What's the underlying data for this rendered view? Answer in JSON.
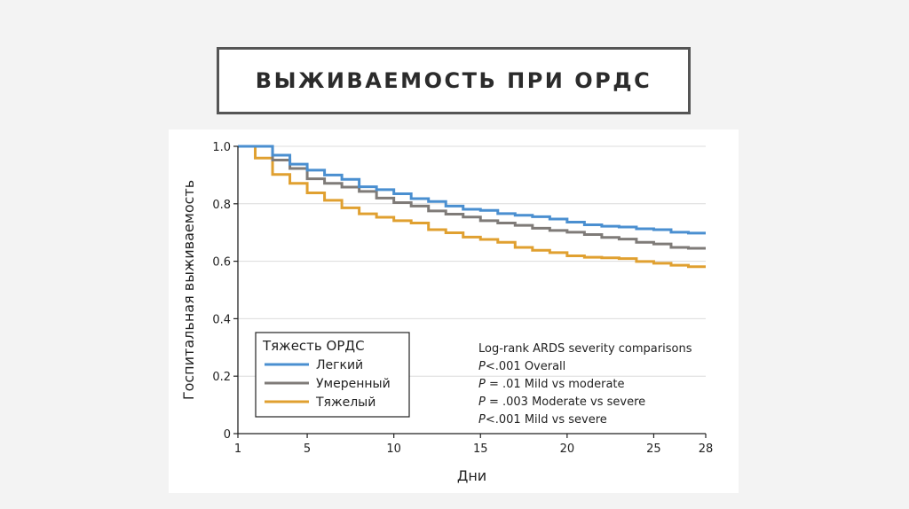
{
  "slide": {
    "title": "ВЫЖИВАЕМОСТЬ ПРИ ОРДС"
  },
  "chart_data": {
    "type": "line",
    "step": true,
    "title": "",
    "xlabel": "Дни",
    "ylabel": "Госпитальная выживаемость",
    "xlim": [
      1,
      28
    ],
    "ylim": [
      0,
      1.0
    ],
    "x_ticks": [
      1,
      5,
      10,
      15,
      20,
      25,
      28
    ],
    "x_tick_labels": [
      "1",
      "5",
      "10",
      "15",
      "20",
      "25",
      "28"
    ],
    "y_ticks": [
      0,
      0.2,
      0.4,
      0.6,
      0.8,
      1.0
    ],
    "y_tick_labels": [
      "0",
      "0.2",
      "0.4",
      "0.6",
      "0.8",
      "1.0"
    ],
    "grid": "horizontal",
    "x": [
      1,
      2,
      3,
      4,
      5,
      6,
      7,
      8,
      9,
      10,
      11,
      12,
      13,
      14,
      15,
      16,
      17,
      18,
      19,
      20,
      21,
      22,
      23,
      24,
      25,
      26,
      27,
      28
    ],
    "legend": {
      "title": "Тяжесть ОРДС",
      "placement": "bottom-left"
    },
    "series": [
      {
        "name": "Легкий",
        "color": "#4a8fd0",
        "values": [
          1.0,
          1.0,
          0.969,
          0.938,
          0.917,
          0.9,
          0.885,
          0.859,
          0.849,
          0.835,
          0.818,
          0.808,
          0.792,
          0.781,
          0.777,
          0.766,
          0.76,
          0.755,
          0.747,
          0.736,
          0.727,
          0.722,
          0.719,
          0.713,
          0.71,
          0.701,
          0.698,
          0.698
        ]
      },
      {
        "name": "Умеренный",
        "color": "#7f7b78",
        "values": [
          1.0,
          1.0,
          0.952,
          0.923,
          0.887,
          0.871,
          0.858,
          0.843,
          0.82,
          0.804,
          0.792,
          0.775,
          0.764,
          0.754,
          0.741,
          0.733,
          0.725,
          0.715,
          0.707,
          0.701,
          0.693,
          0.683,
          0.677,
          0.666,
          0.66,
          0.648,
          0.645,
          0.645
        ]
      },
      {
        "name": "Тяжелый",
        "color": "#e0a030",
        "values": [
          1.0,
          0.959,
          0.902,
          0.871,
          0.838,
          0.812,
          0.786,
          0.765,
          0.753,
          0.741,
          0.733,
          0.71,
          0.699,
          0.684,
          0.676,
          0.666,
          0.648,
          0.638,
          0.63,
          0.619,
          0.614,
          0.612,
          0.609,
          0.599,
          0.593,
          0.586,
          0.581,
          0.581
        ]
      }
    ],
    "annotations": [
      {
        "italic_prefix": "",
        "text": "Log-rank ARDS severity comparisons"
      },
      {
        "italic_prefix": "P",
        "text": "<.001 Overall"
      },
      {
        "italic_prefix": "P",
        "text": " = .01 Mild vs moderate"
      },
      {
        "italic_prefix": "P",
        "text": " = .003 Moderate vs severe"
      },
      {
        "italic_prefix": "P",
        "text": "<.001 Mild vs severe"
      }
    ]
  }
}
